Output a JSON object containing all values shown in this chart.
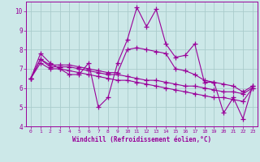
{
  "xlabel": "Windchill (Refroidissement éolien,°C)",
  "bg_color": "#cce8e8",
  "line_color": "#990099",
  "grid_color": "#aacccc",
  "xlim": [
    -0.5,
    23.5
  ],
  "ylim": [
    4,
    10.5
  ],
  "xticks": [
    0,
    1,
    2,
    3,
    4,
    5,
    6,
    7,
    8,
    9,
    10,
    11,
    12,
    13,
    14,
    15,
    16,
    17,
    18,
    19,
    20,
    21,
    22,
    23
  ],
  "yticks": [
    4,
    5,
    6,
    7,
    8,
    9,
    10
  ],
  "series": [
    [
      6.5,
      7.8,
      7.3,
      7.0,
      6.7,
      6.7,
      7.3,
      5.0,
      5.5,
      7.3,
      8.5,
      10.2,
      9.2,
      10.1,
      8.3,
      7.6,
      7.7,
      8.3,
      6.3,
      6.3,
      4.7,
      5.5,
      4.4,
      6.1
    ],
    [
      6.5,
      7.5,
      7.2,
      7.2,
      7.2,
      7.1,
      7.0,
      6.9,
      6.8,
      6.8,
      8.0,
      8.1,
      8.0,
      7.9,
      7.8,
      7.0,
      6.9,
      6.7,
      6.4,
      6.3,
      6.2,
      6.1,
      5.8,
      6.1
    ],
    [
      6.5,
      7.5,
      7.1,
      7.1,
      7.1,
      7.0,
      6.9,
      6.8,
      6.7,
      6.7,
      6.6,
      6.5,
      6.4,
      6.4,
      6.3,
      6.2,
      6.1,
      6.1,
      6.0,
      5.9,
      5.8,
      5.8,
      5.7,
      6.0
    ],
    [
      6.5,
      7.3,
      7.0,
      7.0,
      6.9,
      6.8,
      6.7,
      6.6,
      6.5,
      6.4,
      6.4,
      6.3,
      6.2,
      6.1,
      6.0,
      5.9,
      5.8,
      5.7,
      5.6,
      5.5,
      5.5,
      5.4,
      5.3,
      6.0
    ]
  ]
}
